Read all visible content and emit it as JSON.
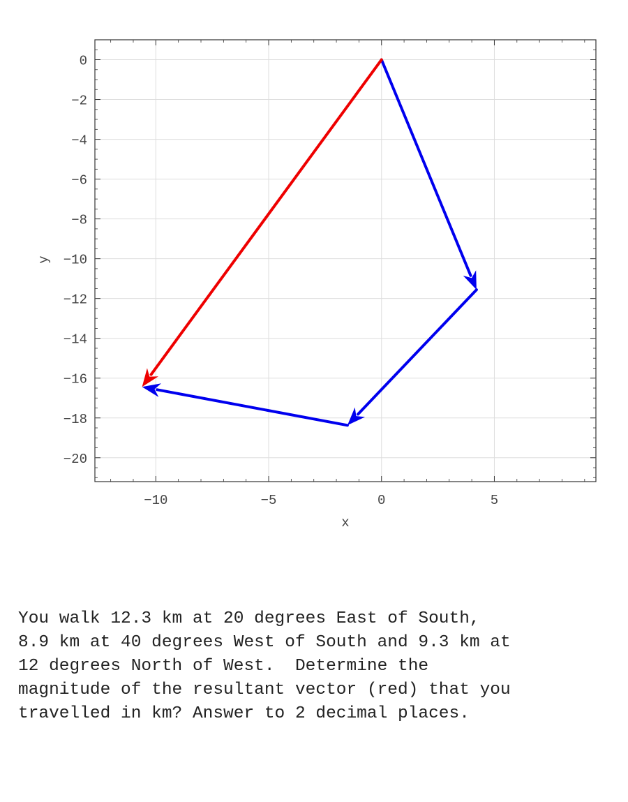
{
  "chart_data": {
    "type": "vector",
    "xlabel": "x",
    "ylabel": "y",
    "xlim": [
      -12.7,
      9.5
    ],
    "ylim": [
      -21.2,
      1.0
    ],
    "xticks": [
      -10,
      -5,
      0,
      5
    ],
    "yticks": [
      0,
      -2,
      -4,
      -6,
      -8,
      -10,
      -12,
      -14,
      -16,
      -18,
      -20
    ],
    "x_tick_labels": [
      "−10",
      "−5",
      "0",
      "5"
    ],
    "y_tick_labels": [
      "0",
      "−2",
      "−4",
      "−6",
      "−8",
      "−10",
      "−12",
      "−14",
      "−16",
      "−18",
      "−20"
    ],
    "grid": true,
    "vectors": [
      {
        "color": "#0000ee",
        "from": [
          0,
          0
        ],
        "to": [
          4.21,
          -11.56
        ]
      },
      {
        "color": "#0000ee",
        "from": [
          4.21,
          -11.56
        ],
        "to": [
          -1.51,
          -18.37
        ]
      },
      {
        "color": "#0000ee",
        "from": [
          -1.51,
          -18.37
        ],
        "to": [
          -10.61,
          -16.44
        ]
      },
      {
        "color": "#ee0000",
        "from": [
          0,
          0
        ],
        "to": [
          -10.61,
          -16.44
        ]
      }
    ]
  },
  "question": {
    "lines": [
      "You walk 12.3 km at 20 degrees East of South,",
      "8.9 km at 40 degrees West of South and 9.3 km at",
      "12 degrees North of West.  Determine the",
      "magnitude of the resultant vector (red) that you",
      "travelled in km? Answer to 2 decimal places."
    ]
  }
}
